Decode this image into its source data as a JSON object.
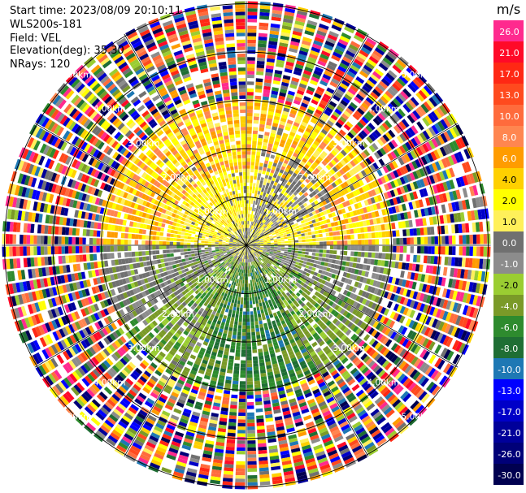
{
  "header": {
    "start_time": "Start time: 2023/08/09 20:10:11",
    "site": "WLS200s-181",
    "field": "Field: VEL",
    "elevation": "Elevation(deg): 35.30",
    "nrays": "NRays: 120"
  },
  "chart_data": {
    "type": "heatmap",
    "projection": "polar-ppi",
    "field": "VEL",
    "unit": "m/s",
    "n_rays": 120,
    "range_rings_km": [
      1.0,
      2.0,
      3.0,
      4.0,
      5.0
    ],
    "range_ring_labels": [
      "1.00km",
      "2.00km",
      "3.00km",
      "4.00km",
      "5.00km"
    ],
    "radial_lines_deg": [
      0,
      30,
      60,
      90,
      120,
      150,
      180,
      210,
      240,
      270,
      300,
      330
    ],
    "colorbar": {
      "label": "m/s",
      "ticks": [
        "26.0",
        "21.0",
        "17.0",
        "13.0",
        "10.0",
        "8.0",
        "6.0",
        "4.0",
        "2.0",
        "1.0",
        "0.0",
        "-1.0",
        "-2.0",
        "-4.0",
        "-6.0",
        "-8.0",
        "-10.0",
        "-13.0",
        "-17.0",
        "-21.0",
        "-26.0",
        "-30.0"
      ],
      "colors": [
        "#ff2a8e",
        "#ff0a28",
        "#ff2814",
        "#ff4a1e",
        "#ff6b3c",
        "#ff8650",
        "#ff9c00",
        "#ffd000",
        "#ffff00",
        "#fff05a",
        "#707070",
        "#8c8c8c",
        "#9acd32",
        "#7a9a28",
        "#2e8b2e",
        "#1f6e34",
        "#1e78b4",
        "#0000ff",
        "#0000c8",
        "#00009a",
        "#000078",
        "#000050"
      ]
    }
  }
}
